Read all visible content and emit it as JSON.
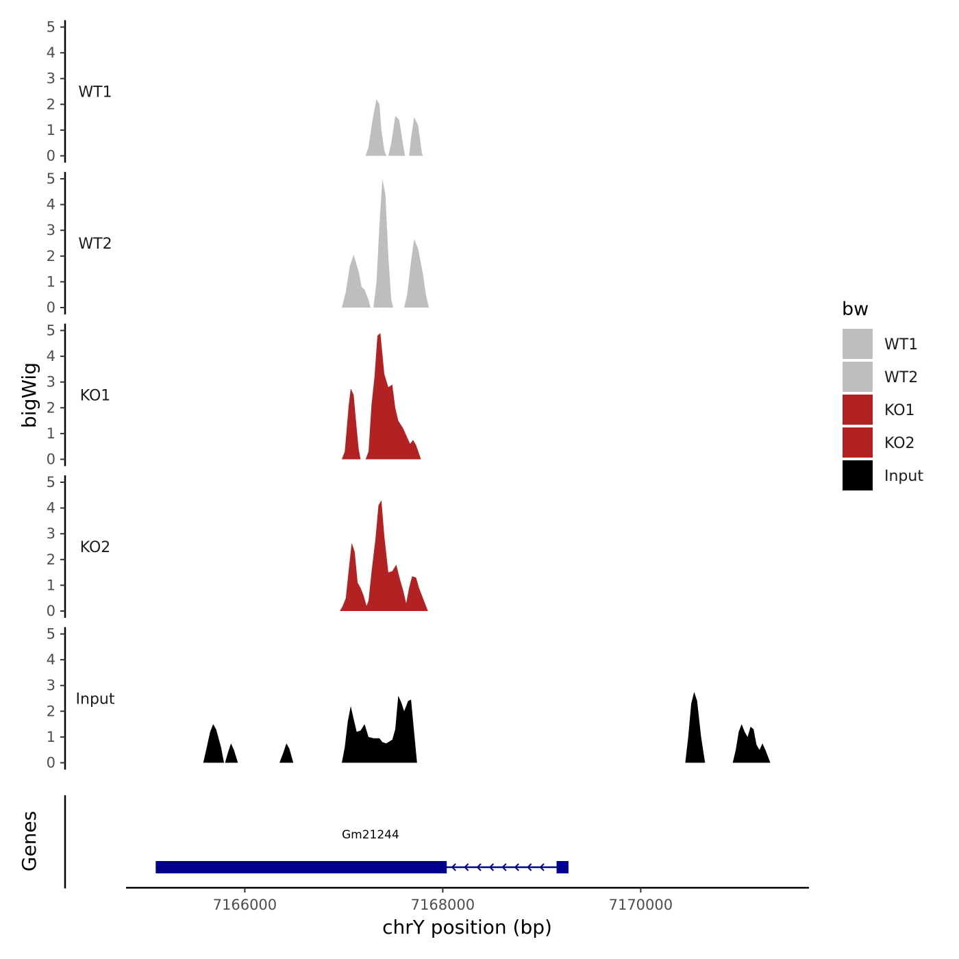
{
  "chart_data": {
    "type": "area",
    "title": "",
    "xlabel": "chrY position (bp)",
    "ylabel": "bigWig",
    "genes_label": "Genes",
    "xlim": [
      7164800,
      7171700
    ],
    "ylim": [
      0,
      5
    ],
    "x_ticks": [
      7166000,
      7168000,
      7170000
    ],
    "x_tick_labels": [
      "7166000",
      "7168000",
      "7170000"
    ],
    "y_ticks": [
      0,
      1,
      2,
      3,
      4,
      5
    ],
    "y_tick_labels": [
      "0",
      "1",
      "2",
      "3",
      "4",
      "5"
    ],
    "legend": {
      "title": "bw",
      "entries": [
        {
          "label": "WT1",
          "color": "#bebebe"
        },
        {
          "label": "WT2",
          "color": "#bebebe"
        },
        {
          "label": "KO1",
          "color": "#b22222"
        },
        {
          "label": "KO2",
          "color": "#b22222"
        },
        {
          "label": "Input",
          "color": "#000000"
        }
      ]
    },
    "series": [
      {
        "name": "WT1",
        "color": "#bebebe",
        "points": [
          [
            7167220,
            0
          ],
          [
            7167250,
            0.35
          ],
          [
            7167290,
            1.4
          ],
          [
            7167330,
            2.2
          ],
          [
            7167360,
            2.0
          ],
          [
            7167380,
            1.0
          ],
          [
            7167410,
            0.2
          ],
          [
            7167430,
            0
          ],
          [
            7167450,
            0
          ],
          [
            7167480,
            0.5
          ],
          [
            7167520,
            1.55
          ],
          [
            7167560,
            1.4
          ],
          [
            7167600,
            0.4
          ],
          [
            7167620,
            0
          ],
          [
            7167660,
            0
          ],
          [
            7167680,
            0.7
          ],
          [
            7167710,
            1.5
          ],
          [
            7167750,
            1.2
          ],
          [
            7167790,
            0.1
          ],
          [
            7167800,
            0
          ]
        ]
      },
      {
        "name": "WT2",
        "color": "#bebebe",
        "points": [
          [
            7166980,
            0
          ],
          [
            7167020,
            0.6
          ],
          [
            7167060,
            1.6
          ],
          [
            7167100,
            2.05
          ],
          [
            7167150,
            1.4
          ],
          [
            7167180,
            0.8
          ],
          [
            7167210,
            0.7
          ],
          [
            7167250,
            0.3
          ],
          [
            7167270,
            0
          ],
          [
            7167300,
            0
          ],
          [
            7167330,
            1.0
          ],
          [
            7167360,
            3.2
          ],
          [
            7167390,
            5.0
          ],
          [
            7167420,
            4.4
          ],
          [
            7167450,
            2.0
          ],
          [
            7167480,
            0.3
          ],
          [
            7167500,
            0
          ],
          [
            7167610,
            0
          ],
          [
            7167640,
            0.5
          ],
          [
            7167680,
            1.8
          ],
          [
            7167710,
            2.65
          ],
          [
            7167750,
            2.3
          ],
          [
            7167800,
            1.3
          ],
          [
            7167830,
            0.5
          ],
          [
            7167860,
            0
          ]
        ]
      },
      {
        "name": "KO1",
        "color": "#b22222",
        "points": [
          [
            7166980,
            0
          ],
          [
            7167010,
            0.3
          ],
          [
            7167050,
            2.1
          ],
          [
            7167070,
            2.75
          ],
          [
            7167100,
            2.5
          ],
          [
            7167130,
            1.2
          ],
          [
            7167150,
            0.4
          ],
          [
            7167170,
            0
          ],
          [
            7167220,
            0
          ],
          [
            7167250,
            0.3
          ],
          [
            7167280,
            2.1
          ],
          [
            7167310,
            3.2
          ],
          [
            7167340,
            4.8
          ],
          [
            7167370,
            4.9
          ],
          [
            7167410,
            3.3
          ],
          [
            7167450,
            2.8
          ],
          [
            7167490,
            2.9
          ],
          [
            7167520,
            2.0
          ],
          [
            7167550,
            1.5
          ],
          [
            7167600,
            1.2
          ],
          [
            7167640,
            0.85
          ],
          [
            7167670,
            0.6
          ],
          [
            7167700,
            0.75
          ],
          [
            7167730,
            0.55
          ],
          [
            7167780,
            0
          ]
        ]
      },
      {
        "name": "KO2",
        "color": "#b22222",
        "points": [
          [
            7166960,
            0
          ],
          [
            7166990,
            0.2
          ],
          [
            7167020,
            0.5
          ],
          [
            7167050,
            1.6
          ],
          [
            7167080,
            2.65
          ],
          [
            7167110,
            2.3
          ],
          [
            7167140,
            1.1
          ],
          [
            7167170,
            0.9
          ],
          [
            7167200,
            0.6
          ],
          [
            7167230,
            0.2
          ],
          [
            7167250,
            0.4
          ],
          [
            7167280,
            1.5
          ],
          [
            7167320,
            2.8
          ],
          [
            7167350,
            4.1
          ],
          [
            7167380,
            4.3
          ],
          [
            7167410,
            2.9
          ],
          [
            7167450,
            1.5
          ],
          [
            7167490,
            1.55
          ],
          [
            7167530,
            1.8
          ],
          [
            7167570,
            1.2
          ],
          [
            7167600,
            0.8
          ],
          [
            7167630,
            0.3
          ],
          [
            7167660,
            0.9
          ],
          [
            7167690,
            1.35
          ],
          [
            7167730,
            1.3
          ],
          [
            7167760,
            0.9
          ],
          [
            7167800,
            0.5
          ],
          [
            7167850,
            0
          ]
        ]
      },
      {
        "name": "Input",
        "color": "#000000",
        "points": [
          [
            7165580,
            0
          ],
          [
            7165610,
            0.5
          ],
          [
            7165650,
            1.2
          ],
          [
            7165680,
            1.5
          ],
          [
            7165710,
            1.3
          ],
          [
            7165760,
            0.6
          ],
          [
            7165790,
            0
          ],
          [
            7165800,
            0
          ],
          [
            7165830,
            0.4
          ],
          [
            7165860,
            0.75
          ],
          [
            7165890,
            0.5
          ],
          [
            7165930,
            0
          ],
          [
            7166350,
            0
          ],
          [
            7166390,
            0.4
          ],
          [
            7166420,
            0.75
          ],
          [
            7166450,
            0.55
          ],
          [
            7166490,
            0
          ],
          [
            7166980,
            0
          ],
          [
            7167010,
            0.6
          ],
          [
            7167040,
            1.6
          ],
          [
            7167070,
            2.2
          ],
          [
            7167100,
            1.7
          ],
          [
            7167130,
            1.2
          ],
          [
            7167170,
            1.25
          ],
          [
            7167210,
            1.5
          ],
          [
            7167250,
            1.0
          ],
          [
            7167300,
            0.95
          ],
          [
            7167360,
            0.95
          ],
          [
            7167390,
            0.8
          ],
          [
            7167430,
            0.75
          ],
          [
            7167490,
            0.9
          ],
          [
            7167520,
            1.3
          ],
          [
            7167550,
            2.6
          ],
          [
            7167580,
            2.35
          ],
          [
            7167610,
            2.0
          ],
          [
            7167650,
            2.4
          ],
          [
            7167680,
            2.45
          ],
          [
            7167710,
            1.2
          ],
          [
            7167740,
            0
          ],
          [
            7170450,
            0
          ],
          [
            7170480,
            1.0
          ],
          [
            7170510,
            2.3
          ],
          [
            7170540,
            2.75
          ],
          [
            7170570,
            2.4
          ],
          [
            7170610,
            1.0
          ],
          [
            7170650,
            0
          ],
          [
            7170930,
            0
          ],
          [
            7170960,
            0.5
          ],
          [
            7170990,
            1.2
          ],
          [
            7171020,
            1.5
          ],
          [
            7171050,
            1.2
          ],
          [
            7171080,
            1.0
          ],
          [
            7171110,
            1.4
          ],
          [
            7171140,
            1.3
          ],
          [
            7171170,
            0.7
          ],
          [
            7171200,
            0.5
          ],
          [
            7171230,
            0.75
          ],
          [
            7171260,
            0.5
          ],
          [
            7171310,
            0
          ]
        ]
      }
    ],
    "gene_track": {
      "gene_name": "Gm21244",
      "strand": "-",
      "transcript_start": 7165100,
      "transcript_end": 7169270,
      "exons": [
        {
          "start": 7165100,
          "end": 7168040,
          "type": "thick"
        },
        {
          "start": 7169150,
          "end": 7169270,
          "type": "thick"
        }
      ],
      "color": "#00008b"
    }
  }
}
